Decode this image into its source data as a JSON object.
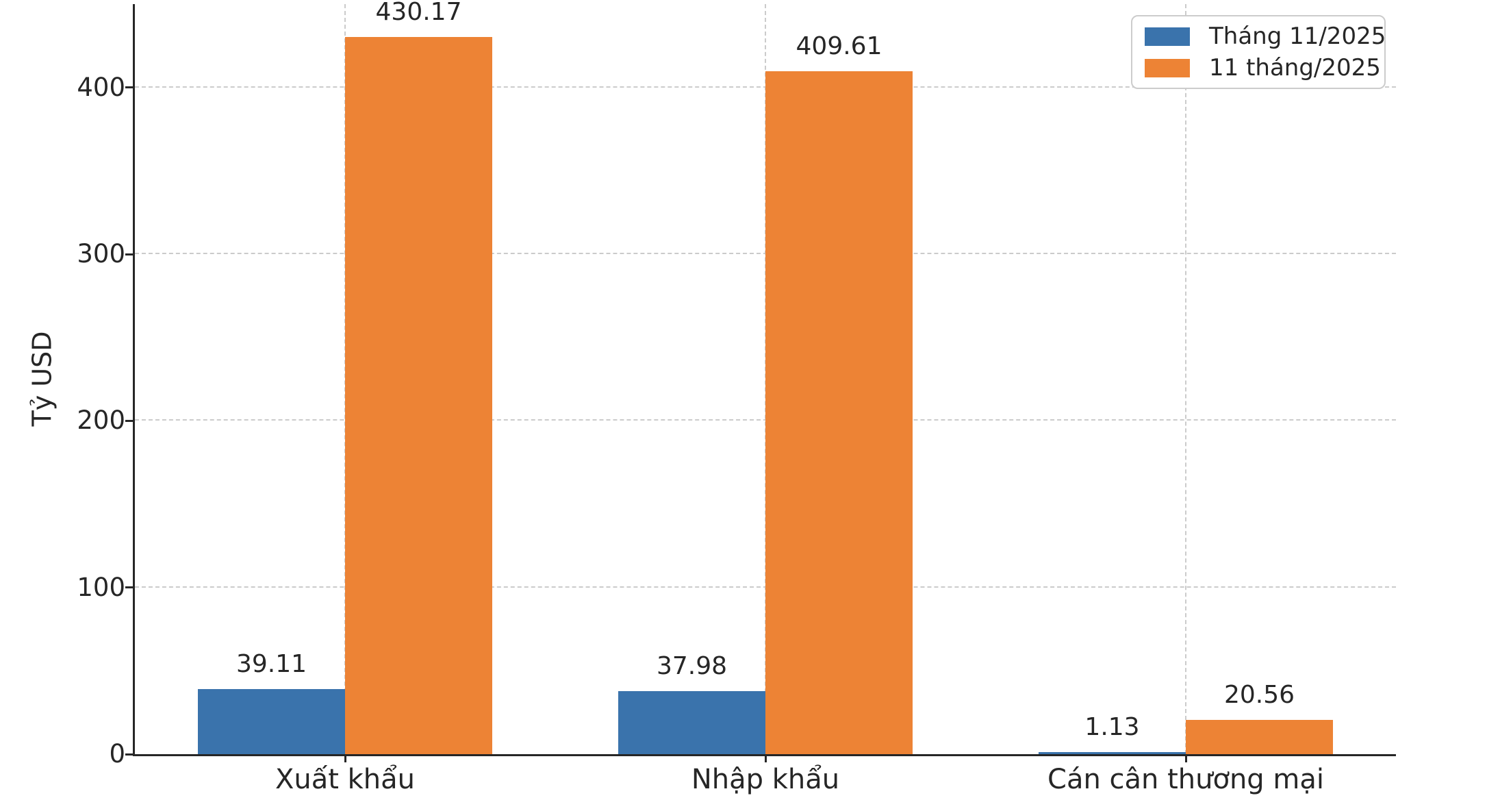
{
  "chart_data": {
    "type": "bar",
    "title": "",
    "xlabel": "",
    "ylabel": "Tỷ USD",
    "categories": [
      "Xuất khẩu",
      "Nhập khẩu",
      "Cán cân thương mại"
    ],
    "series": [
      {
        "name": "Tháng 11/2025",
        "color": "#3a73ac",
        "values": [
          39.11,
          37.98,
          1.13
        ]
      },
      {
        "name": "11 tháng/2025",
        "color": "#ed8335",
        "values": [
          430.17,
          409.61,
          20.56
        ]
      }
    ],
    "value_labels": [
      [
        "39.11",
        "37.98",
        "1.13"
      ],
      [
        "430.17",
        "409.61",
        "20.56"
      ]
    ],
    "yticks": [
      0,
      100,
      200,
      300,
      400
    ],
    "ylim": [
      0,
      450
    ],
    "grid": "dashed, both axes",
    "legend_position": "top-right"
  },
  "colors": {
    "series_blue": "#3a73ac",
    "series_orange": "#ed8335",
    "gridline": "#cbcbcb",
    "axis_ink": "#262626",
    "legend_border": "#cccccc",
    "background": "#ffffff"
  }
}
